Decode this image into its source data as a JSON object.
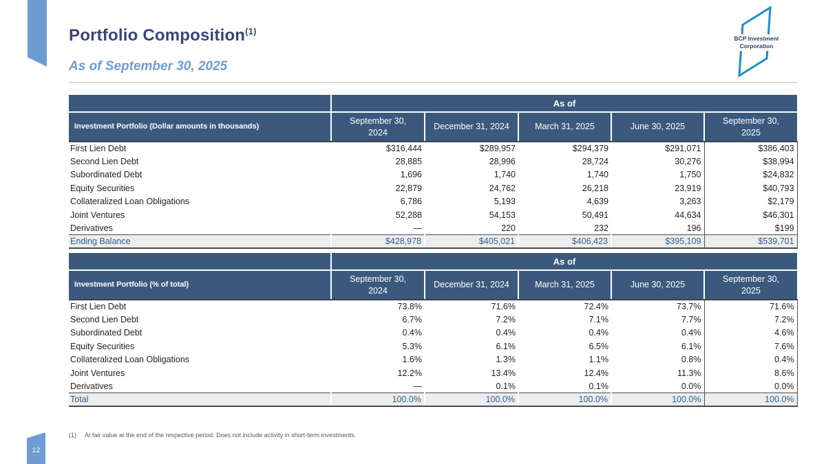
{
  "page": {
    "title": "Portfolio Composition",
    "title_superscript": "(1)",
    "subtitle": "As of September 30, 2025",
    "page_number": "12",
    "footnote_marker": "(1)",
    "footnote_text": "At fair value at the end of the respective period. Does not include activity in short-term investments."
  },
  "logo": {
    "line1": "BCP Investment",
    "line2": "Corporation"
  },
  "colors": {
    "header_blue": "#3A597D",
    "title_navy": "#3B4377",
    "accent_blue": "#6D9CD3",
    "total_text_blue": "#2F6292",
    "total_row_bg": "#EDEDED",
    "logo_stroke_blue": "#1D8ECC"
  },
  "tables": [
    {
      "corner_label": "Investment Portfolio (Dollar amounts in thousands)",
      "as_of_label": "As of",
      "columns": [
        "September 30,\n2024",
        "December 31, 2024",
        "March 31, 2025",
        "June 30, 2025",
        "September 30,\n2025"
      ],
      "rows": [
        {
          "label": "First Lien Debt",
          "values": [
            "$316,444",
            "$289,957",
            "$294,379",
            "$291,071",
            "$386,403"
          ]
        },
        {
          "label": "Second Lien Debt",
          "values": [
            "28,885",
            "28,996",
            "28,724",
            "30,276",
            "$38,994"
          ]
        },
        {
          "label": "Subordinated Debt",
          "values": [
            "1,696",
            "1,740",
            "1,740",
            "1,750",
            "$24,832"
          ]
        },
        {
          "label": "Equity Securities",
          "values": [
            "22,879",
            "24,762",
            "26,218",
            "23,919",
            "$40,793"
          ]
        },
        {
          "label": "Collateralized Loan Obligations",
          "values": [
            "6,786",
            "5,193",
            "4,639",
            "3,263",
            "$2,179"
          ]
        },
        {
          "label": "Joint Ventures",
          "values": [
            "52,288",
            "54,153",
            "50,491",
            "44,634",
            "$46,301"
          ]
        },
        {
          "label": "Derivatives",
          "values": [
            "—",
            "220",
            "232",
            "196",
            "$199"
          ]
        }
      ],
      "total": {
        "label": "Ending Balance",
        "values": [
          "$428,978",
          "$405,021",
          "$406,423",
          "$395,109",
          "$539,701"
        ]
      }
    },
    {
      "corner_label": "Investment Portfolio (% of total)",
      "as_of_label": "As of",
      "columns": [
        "September 30,\n2024",
        "December 31, 2024",
        "March 31, 2025",
        "June 30, 2025",
        "September 30,\n2025"
      ],
      "rows": [
        {
          "label": "First Lien Debt",
          "values": [
            "73.8%",
            "71.6%",
            "72.4%",
            "73.7%",
            "71.6%"
          ]
        },
        {
          "label": "Second Lien Debt",
          "values": [
            "6.7%",
            "7.2%",
            "7.1%",
            "7.7%",
            "7.2%"
          ]
        },
        {
          "label": "Subordinated Debt",
          "values": [
            "0.4%",
            "0.4%",
            "0.4%",
            "0.4%",
            "4.6%"
          ]
        },
        {
          "label": "Equity Securities",
          "values": [
            "5.3%",
            "6.1%",
            "6.5%",
            "6.1%",
            "7.6%"
          ]
        },
        {
          "label": "Collateralized Loan Obligations",
          "values": [
            "1.6%",
            "1.3%",
            "1.1%",
            "0.8%",
            "0.4%"
          ]
        },
        {
          "label": "Joint Ventures",
          "values": [
            "12.2%",
            "13.4%",
            "12.4%",
            "11.3%",
            "8.6%"
          ]
        },
        {
          "label": "Derivatives",
          "values": [
            "—",
            "0.1%",
            "0.1%",
            "0.0%",
            "0.0%"
          ]
        }
      ],
      "total": {
        "label": "Total",
        "values": [
          "100.0%",
          "100.0%",
          "100.0%",
          "100.0%",
          "100.0%"
        ]
      }
    }
  ]
}
